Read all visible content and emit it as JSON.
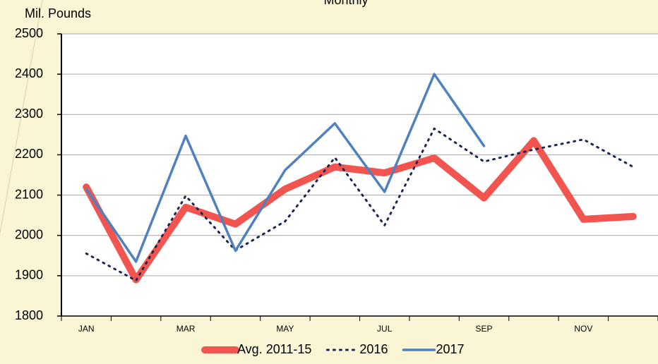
{
  "chart_data": {
    "type": "line",
    "title": "Monthly",
    "y_label": "Mil. Pounds",
    "categories": [
      "JAN",
      null,
      "MAR",
      null,
      "MAY",
      null,
      "JUL",
      null,
      "SEP",
      null,
      "NOV",
      null
    ],
    "series": [
      {
        "name": "Avg. 2011-15",
        "color": "#f25550",
        "style": "solid",
        "width": 10,
        "values": [
          2120,
          1890,
          2070,
          2028,
          2115,
          2170,
          2155,
          2192,
          2093,
          2235,
          2040,
          2047
        ]
      },
      {
        "name": "2016",
        "color": "#1a2755",
        "style": "dotted",
        "width": 3,
        "values": [
          1955,
          1888,
          2098,
          1963,
          2035,
          2193,
          2025,
          2265,
          2183,
          2213,
          2238,
          2170
        ]
      },
      {
        "name": "2017",
        "color": "#4f81bd",
        "style": "solid",
        "width": 3.5,
        "values": [
          2115,
          1935,
          2247,
          1962,
          2162,
          2278,
          2108,
          2400,
          2222,
          null,
          null,
          null
        ]
      }
    ],
    "ylim": [
      1800,
      2500
    ],
    "yticks": [
      1800,
      1900,
      2000,
      2100,
      2200,
      2300,
      2400,
      2500
    ],
    "grid": true,
    "legend": "bottom"
  }
}
